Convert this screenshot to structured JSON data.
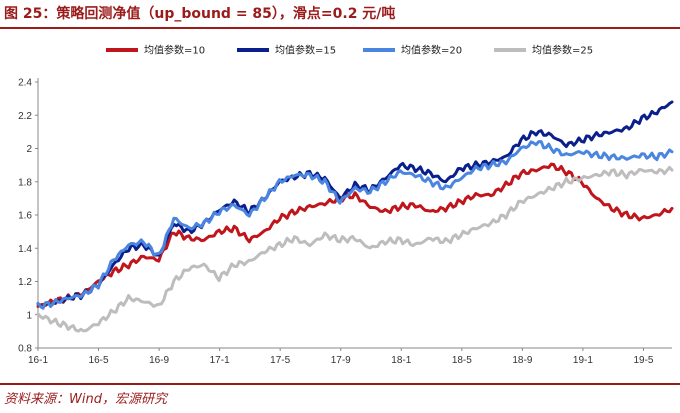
{
  "title": "图 25：策略回测净值（up_bound = 85），滑点=0.2 元/吨",
  "source": "资料来源：Wind，宏源研究",
  "chart_data": {
    "type": "line",
    "title": "",
    "xlabel": "",
    "ylabel": "",
    "x_ticks": [
      "16-1",
      "16-5",
      "16-9",
      "17-1",
      "17-5",
      "17-9",
      "18-1",
      "18-5",
      "18-9",
      "19-1",
      "19-5"
    ],
    "x_range": [
      0,
      42
    ],
    "ylim": [
      0.8,
      2.4
    ],
    "y_ticks": [
      0.8,
      1,
      1.2,
      1.4,
      1.6,
      1.8,
      2,
      2.2,
      2.4
    ],
    "grid": false,
    "legend_position": "top",
    "x": [
      0,
      1,
      2,
      3,
      4,
      5,
      6,
      7,
      8,
      9,
      10,
      11,
      12,
      13,
      14,
      15,
      16,
      17,
      18,
      19,
      20,
      21,
      22,
      23,
      24,
      25,
      26,
      27,
      28,
      29,
      30,
      31,
      32,
      33,
      34,
      35,
      36,
      37,
      38,
      39,
      40,
      41,
      42
    ],
    "series": [
      {
        "name": "均值参数=10",
        "color": "#c0151b",
        "values": [
          1.05,
          1.08,
          1.1,
          1.13,
          1.2,
          1.26,
          1.3,
          1.35,
          1.33,
          1.5,
          1.46,
          1.45,
          1.5,
          1.52,
          1.45,
          1.5,
          1.58,
          1.62,
          1.65,
          1.67,
          1.7,
          1.72,
          1.65,
          1.62,
          1.65,
          1.66,
          1.62,
          1.64,
          1.68,
          1.72,
          1.72,
          1.78,
          1.85,
          1.87,
          1.9,
          1.86,
          1.8,
          1.7,
          1.64,
          1.6,
          1.58,
          1.6,
          1.64
        ]
      },
      {
        "name": "均值参数=15",
        "color": "#0b1f8c",
        "values": [
          1.05,
          1.07,
          1.1,
          1.12,
          1.18,
          1.3,
          1.4,
          1.42,
          1.35,
          1.55,
          1.5,
          1.55,
          1.63,
          1.68,
          1.62,
          1.7,
          1.8,
          1.83,
          1.85,
          1.82,
          1.7,
          1.78,
          1.75,
          1.82,
          1.9,
          1.88,
          1.85,
          1.8,
          1.88,
          1.9,
          1.92,
          1.95,
          2.05,
          2.1,
          2.08,
          2.02,
          2.05,
          2.08,
          2.1,
          2.12,
          2.18,
          2.22,
          2.28
        ]
      },
      {
        "name": "均值参数=20",
        "color": "#4a86e0",
        "values": [
          1.05,
          1.07,
          1.1,
          1.12,
          1.18,
          1.33,
          1.42,
          1.44,
          1.35,
          1.58,
          1.52,
          1.55,
          1.62,
          1.66,
          1.6,
          1.7,
          1.8,
          1.84,
          1.84,
          1.8,
          1.68,
          1.76,
          1.74,
          1.8,
          1.86,
          1.84,
          1.8,
          1.76,
          1.82,
          1.88,
          1.9,
          1.92,
          2.0,
          2.04,
          2.0,
          1.96,
          1.98,
          1.96,
          1.95,
          1.94,
          1.96,
          1.95,
          1.98
        ]
      },
      {
        "name": "均值参数=25",
        "color": "#bdbdbd",
        "values": [
          1.0,
          0.96,
          0.93,
          0.9,
          0.95,
          1.02,
          1.1,
          1.08,
          1.05,
          1.2,
          1.28,
          1.3,
          1.22,
          1.3,
          1.32,
          1.38,
          1.42,
          1.46,
          1.42,
          1.48,
          1.45,
          1.46,
          1.4,
          1.44,
          1.45,
          1.42,
          1.46,
          1.44,
          1.48,
          1.52,
          1.55,
          1.6,
          1.68,
          1.72,
          1.76,
          1.8,
          1.82,
          1.84,
          1.86,
          1.84,
          1.87,
          1.86,
          1.87
        ]
      }
    ]
  }
}
